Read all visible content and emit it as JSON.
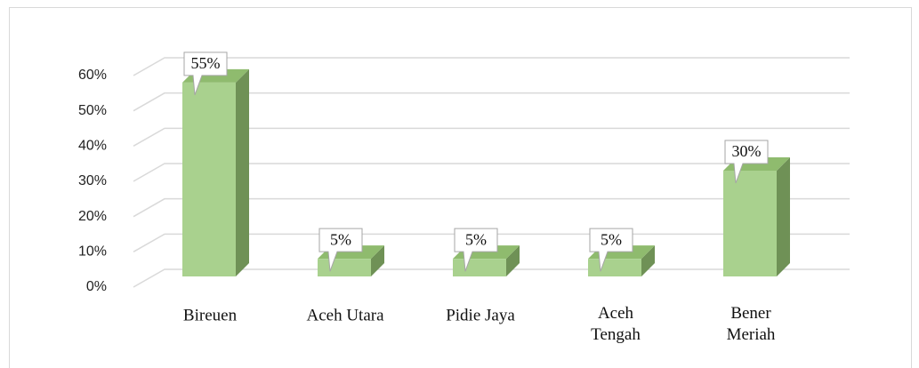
{
  "chart_data": {
    "type": "bar3d",
    "categories": [
      "Bireuen",
      "Aceh Utara",
      "Pidie Jaya",
      "Aceh Tengah",
      "Bener Meriah"
    ],
    "values": [
      55,
      5,
      5,
      5,
      30
    ],
    "value_labels": [
      "55%",
      "5%",
      "5%",
      "5%",
      "30%"
    ],
    "color": "#a9d18e",
    "ylim": [
      0,
      60
    ],
    "yticks": [
      {
        "value": 0,
        "label": "0%"
      },
      {
        "value": 10,
        "label": "10%"
      },
      {
        "value": 20,
        "label": "20%"
      },
      {
        "value": 30,
        "label": "30%"
      },
      {
        "value": 40,
        "label": "40%"
      },
      {
        "value": 50,
        "label": "50%"
      },
      {
        "value": 60,
        "label": "60%"
      }
    ],
    "grid": true
  }
}
